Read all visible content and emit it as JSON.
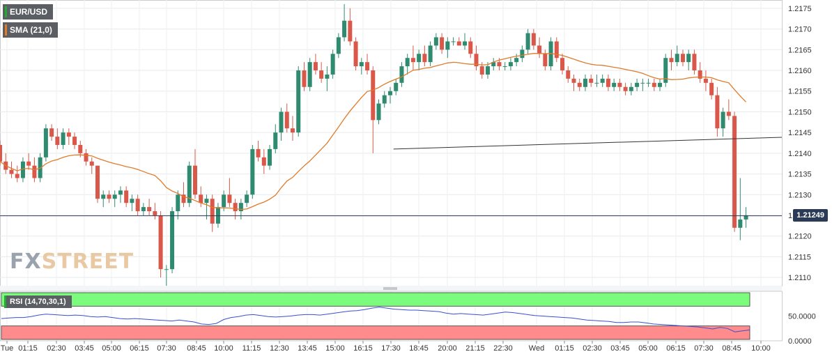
{
  "legend": {
    "symbol": "EUR/USD",
    "sma": "SMA (21,0)",
    "rsi": "RSI (14,70,30,1)"
  },
  "watermark": {
    "fx": "FX",
    "street": "STREET"
  },
  "last_price": "1.21249",
  "colors": {
    "up": "#2e8b6f",
    "down": "#d9584a",
    "sma": "#e07b2a",
    "trendline": "#333333",
    "price_line": "#2b3a55",
    "rsi_line": "#3a4fd0",
    "rsi_overbought": "#7cfc7c",
    "rsi_oversold": "#ff8c8c"
  },
  "chart_data": [
    {
      "type": "candlestick",
      "y_ticks": [
        "1.2175",
        "1.2170",
        "1.2165",
        "1.2160",
        "1.2155",
        "1.2150",
        "1.2145",
        "1.2140",
        "1.2135",
        "1.2130",
        "1.2125",
        "1.2120",
        "1.2115",
        "1.2110"
      ],
      "ylim": [
        1.2108,
        1.2177
      ],
      "x_ticks": [
        "Tue",
        "01:15",
        "02:30",
        "03:45",
        "05:00",
        "06:15",
        "07:30",
        "08:45",
        "10:00",
        "11:15",
        "12:30",
        "13:45",
        "15:00",
        "16:15",
        "17:30",
        "18:45",
        "20:00",
        "21:15",
        "22:30",
        "Wed",
        "01:15",
        "02:30",
        "03:45",
        "05:00",
        "06:15",
        "07:30",
        "08:45",
        "10:00"
      ],
      "grid": true,
      "bar_interval_minutes": 15,
      "candles": [
        [
          1.2142,
          1.2143,
          1.2137,
          1.2138
        ],
        [
          1.2138,
          1.214,
          1.2135,
          1.2136
        ],
        [
          1.2136,
          1.2138,
          1.2134,
          1.2135
        ],
        [
          1.2135,
          1.2137,
          1.2133,
          1.2134
        ],
        [
          1.2134,
          1.2139,
          1.2133,
          1.2138
        ],
        [
          1.2138,
          1.214,
          1.2136,
          1.2137
        ],
        [
          1.2137,
          1.2139,
          1.2133,
          1.2134
        ],
        [
          1.2134,
          1.214,
          1.2133,
          1.2139
        ],
        [
          1.2139,
          1.2147,
          1.2138,
          1.2146
        ],
        [
          1.2146,
          1.2147,
          1.2143,
          1.2144
        ],
        [
          1.2144,
          1.2146,
          1.2141,
          1.2142
        ],
        [
          1.2142,
          1.2146,
          1.2141,
          1.2145
        ],
        [
          1.2145,
          1.2146,
          1.2142,
          1.2144
        ],
        [
          1.2144,
          1.2145,
          1.2141,
          1.2142
        ],
        [
          1.2142,
          1.2143,
          1.2139,
          1.214
        ],
        [
          1.214,
          1.2141,
          1.2137,
          1.2138
        ],
        [
          1.2138,
          1.2139,
          1.2135,
          1.2137
        ],
        [
          1.2137,
          1.2137,
          1.2128,
          1.2129
        ],
        [
          1.2129,
          1.2131,
          1.2127,
          1.213
        ],
        [
          1.213,
          1.2131,
          1.2128,
          1.2129
        ],
        [
          1.2129,
          1.2131,
          1.2127,
          1.213
        ],
        [
          1.213,
          1.2132,
          1.2128,
          1.2131
        ],
        [
          1.2131,
          1.2132,
          1.2127,
          1.2128
        ],
        [
          1.2128,
          1.213,
          1.2126,
          1.2129
        ],
        [
          1.2129,
          1.213,
          1.2125,
          1.2126
        ],
        [
          1.2126,
          1.2128,
          1.2125,
          1.2127
        ],
        [
          1.2127,
          1.2129,
          1.2125,
          1.2126
        ],
        [
          1.2126,
          1.2128,
          1.2124,
          1.2125
        ],
        [
          1.2125,
          1.2126,
          1.211,
          1.2112
        ],
        [
          1.2112,
          1.2113,
          1.2108,
          1.2112
        ],
        [
          1.2112,
          1.2127,
          1.2111,
          1.2126
        ],
        [
          1.2126,
          1.2131,
          1.2124,
          1.213
        ],
        [
          1.213,
          1.2133,
          1.2127,
          1.2128
        ],
        [
          1.2128,
          1.2138,
          1.2127,
          1.2137
        ],
        [
          1.2137,
          1.2141,
          1.2129,
          1.213
        ],
        [
          1.213,
          1.2132,
          1.2127,
          1.2128
        ],
        [
          1.2128,
          1.213,
          1.2124,
          1.2129
        ],
        [
          1.2129,
          1.213,
          1.2121,
          1.2123
        ],
        [
          1.2123,
          1.2128,
          1.2122,
          1.2127
        ],
        [
          1.2127,
          1.2131,
          1.2126,
          1.213
        ],
        [
          1.213,
          1.2134,
          1.2127,
          1.2128
        ],
        [
          1.2128,
          1.2129,
          1.2124,
          1.2126
        ],
        [
          1.2126,
          1.2129,
          1.2124,
          1.2128
        ],
        [
          1.2128,
          1.2131,
          1.2127,
          1.213
        ],
        [
          1.213,
          1.2142,
          1.2129,
          1.2141
        ],
        [
          1.2141,
          1.2143,
          1.2138,
          1.2139
        ],
        [
          1.2139,
          1.2141,
          1.2135,
          1.2137
        ],
        [
          1.2137,
          1.2142,
          1.2136,
          1.2141
        ],
        [
          1.2141,
          1.2147,
          1.214,
          1.2145
        ],
        [
          1.2145,
          1.2151,
          1.2143,
          1.215
        ],
        [
          1.215,
          1.2152,
          1.2145,
          1.2146
        ],
        [
          1.2146,
          1.2149,
          1.2143,
          1.2145
        ],
        [
          1.2145,
          1.2161,
          1.2144,
          1.216
        ],
        [
          1.216,
          1.2162,
          1.2155,
          1.2156
        ],
        [
          1.2156,
          1.2163,
          1.2155,
          1.2162
        ],
        [
          1.2162,
          1.2164,
          1.2159,
          1.216
        ],
        [
          1.216,
          1.2162,
          1.2157,
          1.2158
        ],
        [
          1.2158,
          1.2161,
          1.2155,
          1.2159
        ],
        [
          1.2159,
          1.2165,
          1.2158,
          1.2164
        ],
        [
          1.2164,
          1.2169,
          1.2163,
          1.2168
        ],
        [
          1.2168,
          1.2176,
          1.2167,
          1.2172
        ],
        [
          1.2172,
          1.2175,
          1.2166,
          1.2167
        ],
        [
          1.2167,
          1.2168,
          1.216,
          1.2161
        ],
        [
          1.2161,
          1.2163,
          1.2159,
          1.2162
        ],
        [
          1.2162,
          1.2164,
          1.2159,
          1.216
        ],
        [
          1.216,
          1.2161,
          1.214,
          1.2148
        ],
        [
          1.2148,
          1.2153,
          1.2147,
          1.2152
        ],
        [
          1.2152,
          1.2155,
          1.2151,
          1.2154
        ],
        [
          1.2154,
          1.2156,
          1.2152,
          1.2155
        ],
        [
          1.2155,
          1.2158,
          1.2154,
          1.2157
        ],
        [
          1.2157,
          1.2162,
          1.2156,
          1.2161
        ],
        [
          1.2161,
          1.2164,
          1.2159,
          1.2163
        ],
        [
          1.2163,
          1.2166,
          1.216,
          1.2162
        ],
        [
          1.2162,
          1.2165,
          1.216,
          1.2164
        ],
        [
          1.2164,
          1.2166,
          1.2161,
          1.2162
        ],
        [
          1.2162,
          1.2167,
          1.2161,
          1.2166
        ],
        [
          1.2166,
          1.2169,
          1.2165,
          1.2168
        ],
        [
          1.2168,
          1.2169,
          1.2164,
          1.2165
        ],
        [
          1.2165,
          1.2168,
          1.2163,
          1.2167
        ],
        [
          1.2167,
          1.2168,
          1.2166,
          1.2167
        ],
        [
          1.2167,
          1.2168,
          1.2166,
          1.2166
        ],
        [
          1.2166,
          1.2169,
          1.2165,
          1.2167
        ],
        [
          1.2167,
          1.2168,
          1.2163,
          1.2164
        ],
        [
          1.2164,
          1.2166,
          1.216,
          1.2161
        ],
        [
          1.2161,
          1.2162,
          1.2158,
          1.2159
        ],
        [
          1.2159,
          1.2162,
          1.2158,
          1.2161
        ],
        [
          1.2161,
          1.2163,
          1.216,
          1.2162
        ],
        [
          1.2162,
          1.2163,
          1.216,
          1.2161
        ],
        [
          1.2161,
          1.2162,
          1.216,
          1.2161
        ],
        [
          1.2161,
          1.2163,
          1.216,
          1.2162
        ],
        [
          1.2162,
          1.2164,
          1.2161,
          1.2163
        ],
        [
          1.2163,
          1.2166,
          1.2162,
          1.2165
        ],
        [
          1.2165,
          1.217,
          1.2164,
          1.2169
        ],
        [
          1.2169,
          1.217,
          1.2165,
          1.2166
        ],
        [
          1.2166,
          1.2168,
          1.2163,
          1.2164
        ],
        [
          1.2164,
          1.2165,
          1.216,
          1.2161
        ],
        [
          1.2161,
          1.2168,
          1.216,
          1.2167
        ],
        [
          1.2167,
          1.2168,
          1.2162,
          1.2163
        ],
        [
          1.2163,
          1.2164,
          1.2159,
          1.216
        ],
        [
          1.216,
          1.2161,
          1.2157,
          1.2158
        ],
        [
          1.2158,
          1.2159,
          1.2155,
          1.2157
        ],
        [
          1.2157,
          1.2158,
          1.2155,
          1.2156
        ],
        [
          1.2156,
          1.2159,
          1.2155,
          1.2158
        ],
        [
          1.2158,
          1.2159,
          1.2156,
          1.2157
        ],
        [
          1.2157,
          1.2159,
          1.2156,
          1.2157
        ],
        [
          1.2157,
          1.2159,
          1.2156,
          1.2158
        ],
        [
          1.2158,
          1.2159,
          1.2155,
          1.2156
        ],
        [
          1.2156,
          1.2158,
          1.2155,
          1.2157
        ],
        [
          1.2157,
          1.2158,
          1.2155,
          1.2156
        ],
        [
          1.2156,
          1.2157,
          1.2154,
          1.2155
        ],
        [
          1.2155,
          1.2157,
          1.2154,
          1.2156
        ],
        [
          1.2156,
          1.2158,
          1.2155,
          1.2157
        ],
        [
          1.2157,
          1.2158,
          1.2155,
          1.2157
        ],
        [
          1.2157,
          1.2158,
          1.2156,
          1.2157
        ],
        [
          1.2157,
          1.2158,
          1.2155,
          1.2156
        ],
        [
          1.2156,
          1.2158,
          1.2155,
          1.2157
        ],
        [
          1.2157,
          1.2164,
          1.2156,
          1.2163
        ],
        [
          1.2163,
          1.2165,
          1.216,
          1.2162
        ],
        [
          1.2162,
          1.2166,
          1.2161,
          1.2164
        ],
        [
          1.2164,
          1.2165,
          1.2161,
          1.2162
        ],
        [
          1.2162,
          1.2165,
          1.216,
          1.2164
        ],
        [
          1.2164,
          1.2165,
          1.2159,
          1.216
        ],
        [
          1.216,
          1.2162,
          1.2157,
          1.2158
        ],
        [
          1.2158,
          1.216,
          1.2155,
          1.2157
        ],
        [
          1.2157,
          1.2158,
          1.2153,
          1.2154
        ],
        [
          1.2154,
          1.2156,
          1.2144,
          1.2146
        ],
        [
          1.2146,
          1.2151,
          1.2144,
          1.215
        ],
        [
          1.215,
          1.2153,
          1.2148,
          1.2149
        ],
        [
          1.2149,
          1.215,
          1.2121,
          1.2122
        ],
        [
          1.2122,
          1.2134,
          1.2119,
          1.2124
        ],
        [
          1.2124,
          1.2127,
          1.2122,
          1.2125
        ]
      ],
      "sma_period": 21,
      "trendline": [
        [
          20,
          1.2141
        ],
        [
          55,
          1.2144
        ]
      ],
      "last_price": 1.21249
    },
    {
      "type": "line",
      "name": "RSI (14,70,30,1)",
      "y_ticks": [
        "50.0000",
        "0.0000"
      ],
      "ylim": [
        0,
        100
      ],
      "overbought": 70,
      "oversold": 30,
      "values": [
        45,
        46,
        47,
        47,
        49,
        52,
        54,
        53,
        52,
        51,
        52,
        51,
        49,
        48,
        49,
        47,
        45,
        44,
        45,
        44,
        43,
        42,
        41,
        40,
        42,
        40,
        38,
        34,
        33,
        35,
        43,
        47,
        49,
        52,
        53,
        51,
        49,
        48,
        49,
        50,
        52,
        53,
        53,
        52,
        54,
        56,
        58,
        60,
        61,
        63,
        66,
        68,
        66,
        64,
        63,
        62,
        62,
        61,
        60,
        59,
        56,
        54,
        55,
        54,
        53,
        52,
        54,
        56,
        58,
        57,
        55,
        53,
        51,
        50,
        49,
        48,
        47,
        46,
        44,
        42,
        41,
        40,
        39,
        37,
        37,
        38,
        38,
        36,
        34,
        33,
        32,
        31,
        30,
        29,
        28,
        26,
        24,
        27,
        25,
        18,
        20,
        22
      ]
    }
  ]
}
